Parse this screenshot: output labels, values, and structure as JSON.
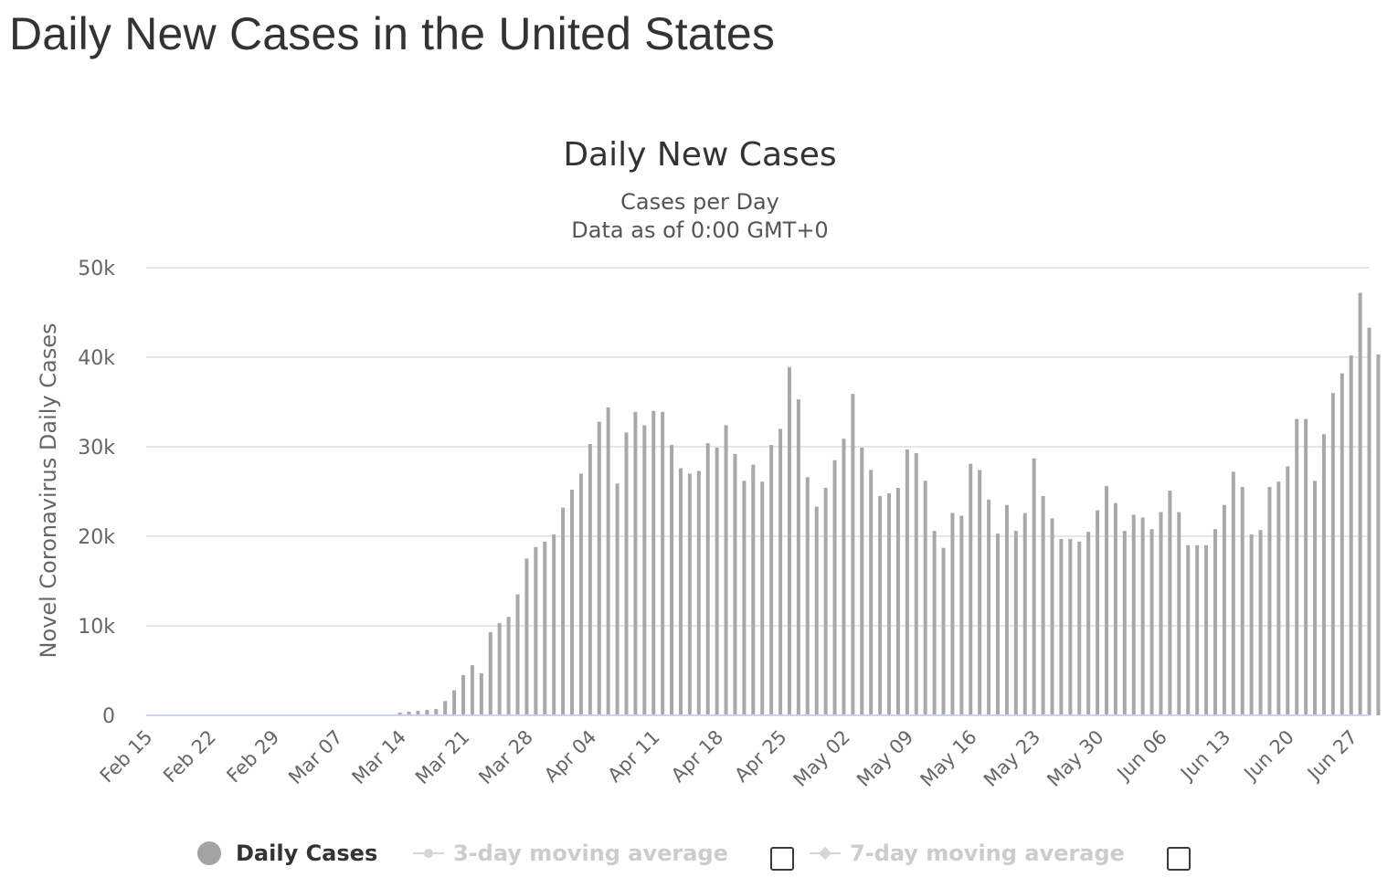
{
  "page": {
    "title": "Daily New Cases in the United States"
  },
  "legend": {
    "daily_cases": "Daily Cases",
    "avg3": "3-day moving average",
    "avg7": "7-day moving average",
    "avg3_checked": false,
    "avg7_checked": false
  },
  "colors": {
    "bar": "#a8a8a8",
    "grid": "#e6e6e6",
    "axis": "#ccd6eb",
    "text": "#333333",
    "muted": "#666666",
    "legend_hidden": "#cccccc"
  },
  "chart_data": {
    "type": "bar",
    "title": "Daily New Cases",
    "subtitle": [
      "Cases per Day",
      "Data as of 0:00 GMT+0"
    ],
    "ylabel": "Novel Coronavirus Daily Cases",
    "xlabel": "",
    "ylim": [
      0,
      50000
    ],
    "yticks": [
      "0",
      "10k",
      "20k",
      "30k",
      "40k",
      "50k"
    ],
    "xticks": [
      "Feb 15",
      "Feb 22",
      "Feb 29",
      "Mar 07",
      "Mar 14",
      "Mar 21",
      "Mar 28",
      "Apr 04",
      "Apr 11",
      "Apr 18",
      "Apr 25",
      "May 02",
      "May 09",
      "May 16",
      "May 23",
      "May 30",
      "Jun 06",
      "Jun 13",
      "Jun 20",
      "Jun 27"
    ],
    "grid": true,
    "legend_position": "bottom",
    "series": [
      {
        "name": "Daily Cases",
        "first_date": "Feb 15",
        "values": [
          0,
          0,
          0,
          0,
          0,
          0,
          0,
          0,
          0,
          0,
          0,
          0,
          0,
          0,
          0,
          0,
          0,
          0,
          0,
          0,
          0,
          0,
          0,
          0,
          0,
          0,
          0,
          0,
          300,
          400,
          500,
          600,
          700,
          1600,
          2800,
          4500,
          5600,
          4700,
          9300,
          10300,
          11000,
          13500,
          17500,
          18800,
          19400,
          20200,
          23200,
          25200,
          27000,
          30300,
          32800,
          34400,
          25900,
          31600,
          33900,
          32400,
          34000,
          33900,
          30200,
          27600,
          27000,
          27300,
          30400,
          29900,
          32400,
          29200,
          26200,
          28000,
          26100,
          30200,
          32000,
          38900,
          35300,
          26600,
          23300,
          25400,
          28500,
          30900,
          35900,
          29900,
          27400,
          24500,
          24800,
          25400,
          29700,
          29300,
          26200,
          20600,
          18700,
          22600,
          22300,
          28100,
          27400,
          24100,
          20300,
          23500,
          20600,
          22600,
          28700,
          24500,
          22000,
          19700,
          19700,
          19400,
          20500,
          22900,
          25600,
          23700,
          20600,
          22400,
          22100,
          20800,
          22700,
          25100,
          22700,
          19000,
          19000,
          19000,
          20800,
          23500,
          27200,
          25500,
          20200,
          20700,
          25500,
          26100,
          27800,
          33100,
          33100,
          26200,
          31400,
          36000,
          38200,
          40200,
          47200,
          43300,
          40300
        ]
      }
    ]
  }
}
